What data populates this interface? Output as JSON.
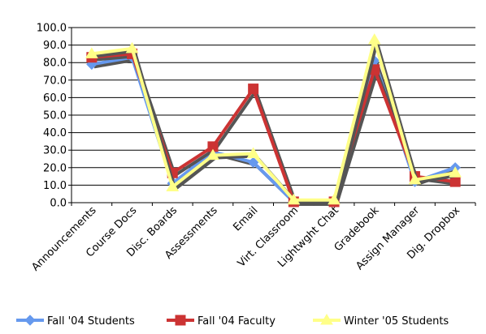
{
  "chart_data": {
    "type": "line",
    "categories": [
      "Announcements",
      "Course Docs",
      "Disc. Boards",
      "Assessments",
      "Email",
      "Virt. Classroom",
      "Lightwght Chat",
      "Gradebook",
      "Assign Manager",
      "Dig. Dropbox"
    ],
    "y_ticks": [
      "0.0",
      "10.0",
      "20.0",
      "30.0",
      "40.0",
      "50.0",
      "60.0",
      "70.0",
      "80.0",
      "90.0",
      "100.0"
    ],
    "ylim": [
      0,
      100
    ],
    "grid": true,
    "legend_position": "bottom",
    "series": [
      {
        "name": "Fall '04 Students",
        "color": "#6699EE",
        "marker": "diamond",
        "values": [
          79,
          83,
          11,
          29,
          23,
          0.5,
          0.5,
          81,
          12,
          20
        ]
      },
      {
        "name": "Fall '04 Faculty",
        "color": "#CC3333",
        "marker": "square",
        "values": [
          83,
          85,
          17,
          32,
          65,
          0.5,
          0.5,
          76,
          15,
          12
        ]
      },
      {
        "name": "Winter '05 Students",
        "color": "#FFFF88",
        "marker": "triangle",
        "values": [
          85,
          88,
          9,
          27,
          28,
          1.5,
          1.5,
          93,
          13,
          17
        ]
      }
    ]
  }
}
